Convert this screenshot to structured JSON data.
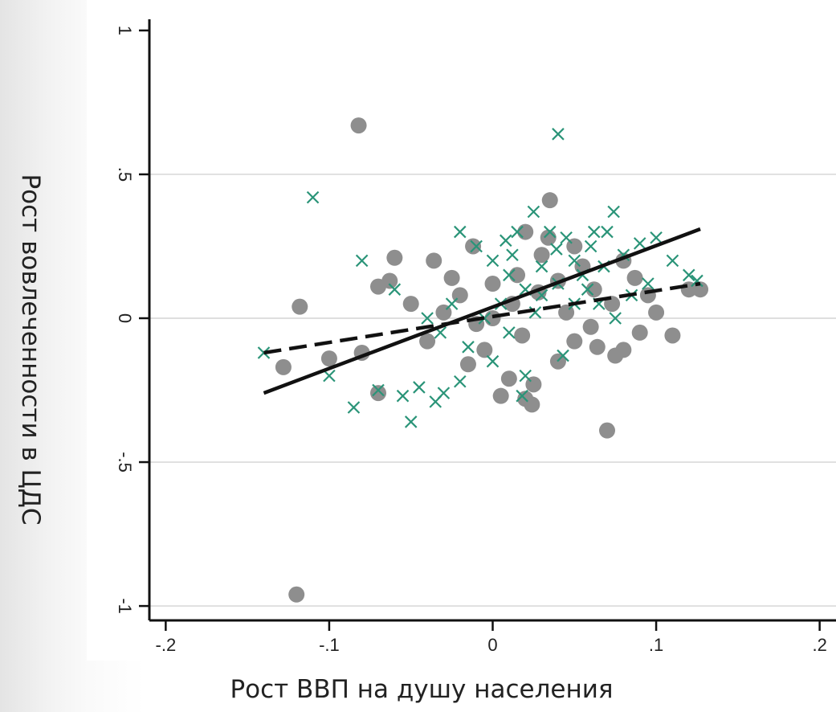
{
  "chart_data": {
    "type": "scatter",
    "xlabel": "Рост ВВП на душу населения",
    "ylabel": "Рост вовлеченности в ЦДС",
    "xlim": [
      -0.21,
      0.21
    ],
    "ylim": [
      -1.05,
      1.05
    ],
    "x_ticks": [
      {
        "value": -0.2,
        "label": "-.2"
      },
      {
        "value": -0.1,
        "label": "-.1"
      },
      {
        "value": 0,
        "label": "0"
      },
      {
        "value": 0.1,
        "label": ".1"
      },
      {
        "value": 0.2,
        "label": ".2"
      }
    ],
    "y_ticks": [
      {
        "value": 1,
        "label": "1"
      },
      {
        "value": 0.5,
        "label": ".5"
      },
      {
        "value": 0,
        "label": "0"
      },
      {
        "value": -0.5,
        "label": "-.5"
      },
      {
        "value": -1,
        "label": "-1"
      }
    ],
    "grid": "horizontal",
    "legend": "none",
    "series": [
      {
        "marker": "circle",
        "color": "#8e8e8e",
        "points": [
          [
            -0.082,
            0.67
          ],
          [
            0.035,
            0.41
          ],
          [
            -0.118,
            0.04
          ],
          [
            -0.12,
            -0.96
          ],
          [
            -0.128,
            -0.17
          ],
          [
            -0.1,
            -0.14
          ],
          [
            -0.08,
            -0.12
          ],
          [
            -0.07,
            -0.26
          ],
          [
            -0.07,
            0.11
          ],
          [
            -0.063,
            0.13
          ],
          [
            -0.06,
            0.21
          ],
          [
            -0.036,
            0.2
          ],
          [
            -0.02,
            0.08
          ],
          [
            -0.05,
            0.05
          ],
          [
            -0.03,
            0.02
          ],
          [
            -0.01,
            -0.02
          ],
          [
            -0.005,
            -0.11
          ],
          [
            -0.015,
            -0.16
          ],
          [
            0.01,
            -0.21
          ],
          [
            0.025,
            -0.23
          ],
          [
            0.005,
            -0.27
          ],
          [
            0.02,
            -0.28
          ],
          [
            0.024,
            -0.3
          ],
          [
            0.07,
            -0.39
          ],
          [
            0.11,
            -0.06
          ],
          [
            0.09,
            -0.05
          ],
          [
            0.08,
            -0.11
          ],
          [
            0.075,
            -0.13
          ],
          [
            0.1,
            0.02
          ],
          [
            0.12,
            0.1
          ],
          [
            0.127,
            0.1
          ],
          [
            0.06,
            -0.03
          ],
          [
            0.05,
            -0.08
          ],
          [
            0.04,
            -0.15
          ],
          [
            0.0,
            0.12
          ],
          [
            0.012,
            0.05
          ],
          [
            0.028,
            0.09
          ],
          [
            0.045,
            0.02
          ],
          [
            0.062,
            0.1
          ],
          [
            -0.04,
            -0.08
          ],
          [
            0.015,
            0.15
          ],
          [
            0.03,
            0.22
          ],
          [
            0.034,
            0.28
          ],
          [
            0.055,
            0.18
          ],
          [
            0.073,
            0.05
          ],
          [
            0.087,
            0.14
          ],
          [
            -0.025,
            0.14
          ],
          [
            0.0,
            0.0
          ],
          [
            0.018,
            -0.06
          ],
          [
            0.04,
            0.13
          ],
          [
            0.05,
            0.25
          ],
          [
            0.02,
            0.3
          ],
          [
            -0.012,
            0.25
          ],
          [
            0.064,
            -0.1
          ],
          [
            0.095,
            0.08
          ],
          [
            0.08,
            0.2
          ]
        ]
      },
      {
        "marker": "x",
        "color": "#2a9478",
        "points": [
          [
            0.04,
            0.64
          ],
          [
            -0.11,
            0.42
          ],
          [
            0.074,
            0.37
          ],
          [
            -0.1,
            -0.2
          ],
          [
            -0.14,
            -0.12
          ],
          [
            -0.085,
            -0.31
          ],
          [
            -0.05,
            -0.36
          ],
          [
            -0.07,
            -0.25
          ],
          [
            -0.055,
            -0.27
          ],
          [
            -0.045,
            -0.24
          ],
          [
            -0.035,
            -0.29
          ],
          [
            -0.03,
            -0.26
          ],
          [
            -0.02,
            -0.22
          ],
          [
            -0.015,
            -0.1
          ],
          [
            -0.08,
            0.2
          ],
          [
            -0.06,
            0.1
          ],
          [
            -0.02,
            0.3
          ],
          [
            -0.01,
            0.25
          ],
          [
            0.0,
            0.2
          ],
          [
            0.01,
            0.15
          ],
          [
            0.02,
            0.1
          ],
          [
            0.03,
            0.08
          ],
          [
            0.04,
            0.12
          ],
          [
            0.05,
            0.2
          ],
          [
            0.06,
            0.25
          ],
          [
            0.07,
            0.3
          ],
          [
            0.08,
            0.22
          ],
          [
            0.09,
            0.26
          ],
          [
            0.1,
            0.28
          ],
          [
            0.11,
            0.2
          ],
          [
            0.12,
            0.15
          ],
          [
            0.125,
            0.13
          ],
          [
            0.025,
            0.37
          ],
          [
            0.015,
            0.3
          ],
          [
            0.035,
            0.3
          ],
          [
            0.045,
            0.28
          ],
          [
            0.055,
            0.15
          ],
          [
            0.065,
            0.05
          ],
          [
            0.075,
            0.0
          ],
          [
            0.085,
            0.08
          ],
          [
            0.005,
            0.05
          ],
          [
            -0.005,
            0.0
          ],
          [
            0.01,
            -0.05
          ],
          [
            0.02,
            -0.2
          ],
          [
            0.018,
            -0.27
          ],
          [
            0.043,
            -0.13
          ],
          [
            -0.04,
            0.0
          ],
          [
            -0.025,
            0.05
          ],
          [
            0.0,
            -0.15
          ],
          [
            0.058,
            0.1
          ],
          [
            0.03,
            0.18
          ],
          [
            0.012,
            0.22
          ],
          [
            0.05,
            0.05
          ],
          [
            0.068,
            0.18
          ],
          [
            0.095,
            0.12
          ],
          [
            -0.032,
            -0.05
          ],
          [
            0.026,
            0.02
          ],
          [
            0.039,
            0.24
          ],
          [
            0.008,
            0.27
          ],
          [
            0.062,
            0.3
          ]
        ]
      }
    ],
    "lines": [
      {
        "style": "solid",
        "color": "#111111",
        "points": [
          [
            -0.14,
            -0.26
          ],
          [
            0.127,
            0.31
          ]
        ]
      },
      {
        "style": "dashed",
        "color": "#111111",
        "points": [
          [
            -0.14,
            -0.12
          ],
          [
            0.127,
            0.12
          ]
        ]
      }
    ]
  }
}
